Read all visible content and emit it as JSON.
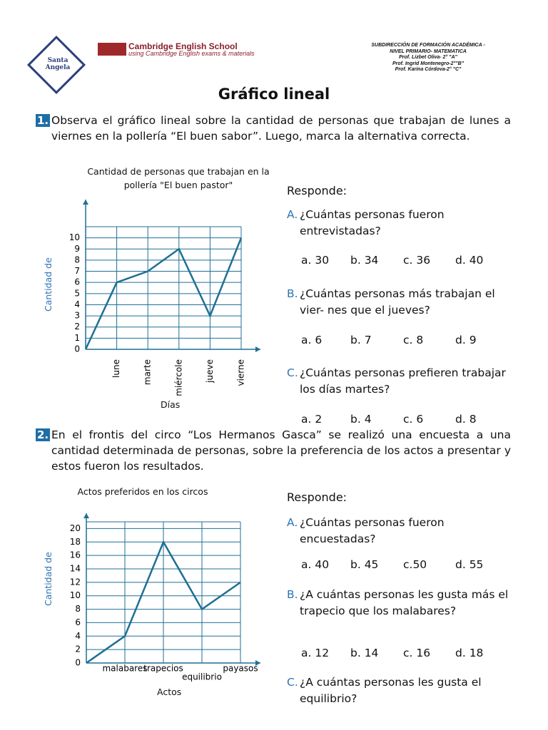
{
  "header": {
    "logo_text": "Santa Angela",
    "school_name": "Cambridge English School",
    "school_tagline": "using Cambridge English exams & materials",
    "info_lines": [
      "SUBDIRECCIÓN DE FORMACIÓN ACADÉMICA -",
      "NIVEL PRIMARIO- MATEMATICA",
      "Prof.  Lizbet Oliva- 2° \"A\"",
      "Prof. Ingrid Montenegro-2°\"B\"",
      "Prof. Karina Córdova-2° \"C\""
    ]
  },
  "title": "Gráfico  lineal",
  "sections": [
    {
      "number": "1.",
      "text": "Observa el gráfico lineal      sobre la cantidad de personas que trabajan de lunes a viernes en la pollería “El buen sabor”. Luego, marca la alternativa correcta.",
      "chart_data": {
        "type": "line",
        "title": "Cantidad de personas que trabajan en la pollería \"El buen pastor\"",
        "x_label": "Días",
        "y_label": "Cantidad de",
        "categories": [
          null,
          "lune",
          "marte",
          "miércole",
          "jueve",
          "vierne"
        ],
        "values": [
          0,
          6,
          7,
          9,
          3,
          10
        ],
        "color": "#1f6f94",
        "ylim": [
          0,
          11
        ],
        "yticks": [
          0,
          1,
          2,
          3,
          4,
          5,
          6,
          7,
          8,
          9,
          10
        ],
        "grid": true
      },
      "responde": "Responde:",
      "questions": [
        {
          "letter": "A.",
          "text": "¿Cuántas personas fueron entrevistadas?",
          "options": [
            "a. 30",
            "b. 34",
            "c. 36",
            "d. 40"
          ]
        },
        {
          "letter": "B.",
          "text": "¿Cuántas personas más trabajan el vier- nes que el jueves?",
          "options": [
            "a. 6",
            "b. 7",
            "c. 8",
            "d. 9"
          ]
        },
        {
          "letter": "C.",
          "text": "¿Cuántas personas prefieren trabajar los días martes?",
          "options": [
            "a. 2",
            "b. 4",
            "c. 6",
            "d. 8"
          ]
        }
      ]
    },
    {
      "number": "2.",
      "text": "En el frontis del circo “Los Hermanos Gasca” se realizó una encuesta a una cantidad determinada de personas, sobre la preferencia de los actos a presentar y estos fueron los resultados.",
      "chart_data": {
        "type": "line",
        "title": "Actos preferidos en los circos",
        "x_label": "Actos",
        "y_label": "Cantidad de",
        "categories": [
          null,
          "malabares",
          "trapecios",
          "equilibrio",
          "payasos"
        ],
        "values": [
          0,
          4,
          18,
          8,
          12
        ],
        "color": "#1f6f94",
        "ylim": [
          0,
          21
        ],
        "yticks": [
          0,
          2,
          4,
          6,
          8,
          10,
          12,
          14,
          16,
          18,
          20
        ],
        "grid": true
      },
      "responde": "Responde:",
      "questions": [
        {
          "letter": "A.",
          "text": "¿Cuántas personas fueron encuestadas?",
          "options": [
            "a. 40",
            "b. 45",
            "c.50",
            "d. 55"
          ]
        },
        {
          "letter": "B.",
          "text": "¿A cuántas personas les gusta más el trapecio que los malabares?",
          "options": [
            "a. 12",
            "b. 14",
            "c. 16",
            "d. 18"
          ]
        },
        {
          "letter": "C.",
          "text": "¿A  cuántas personas les  gusta el equilibrio?",
          "options": []
        }
      ]
    }
  ]
}
